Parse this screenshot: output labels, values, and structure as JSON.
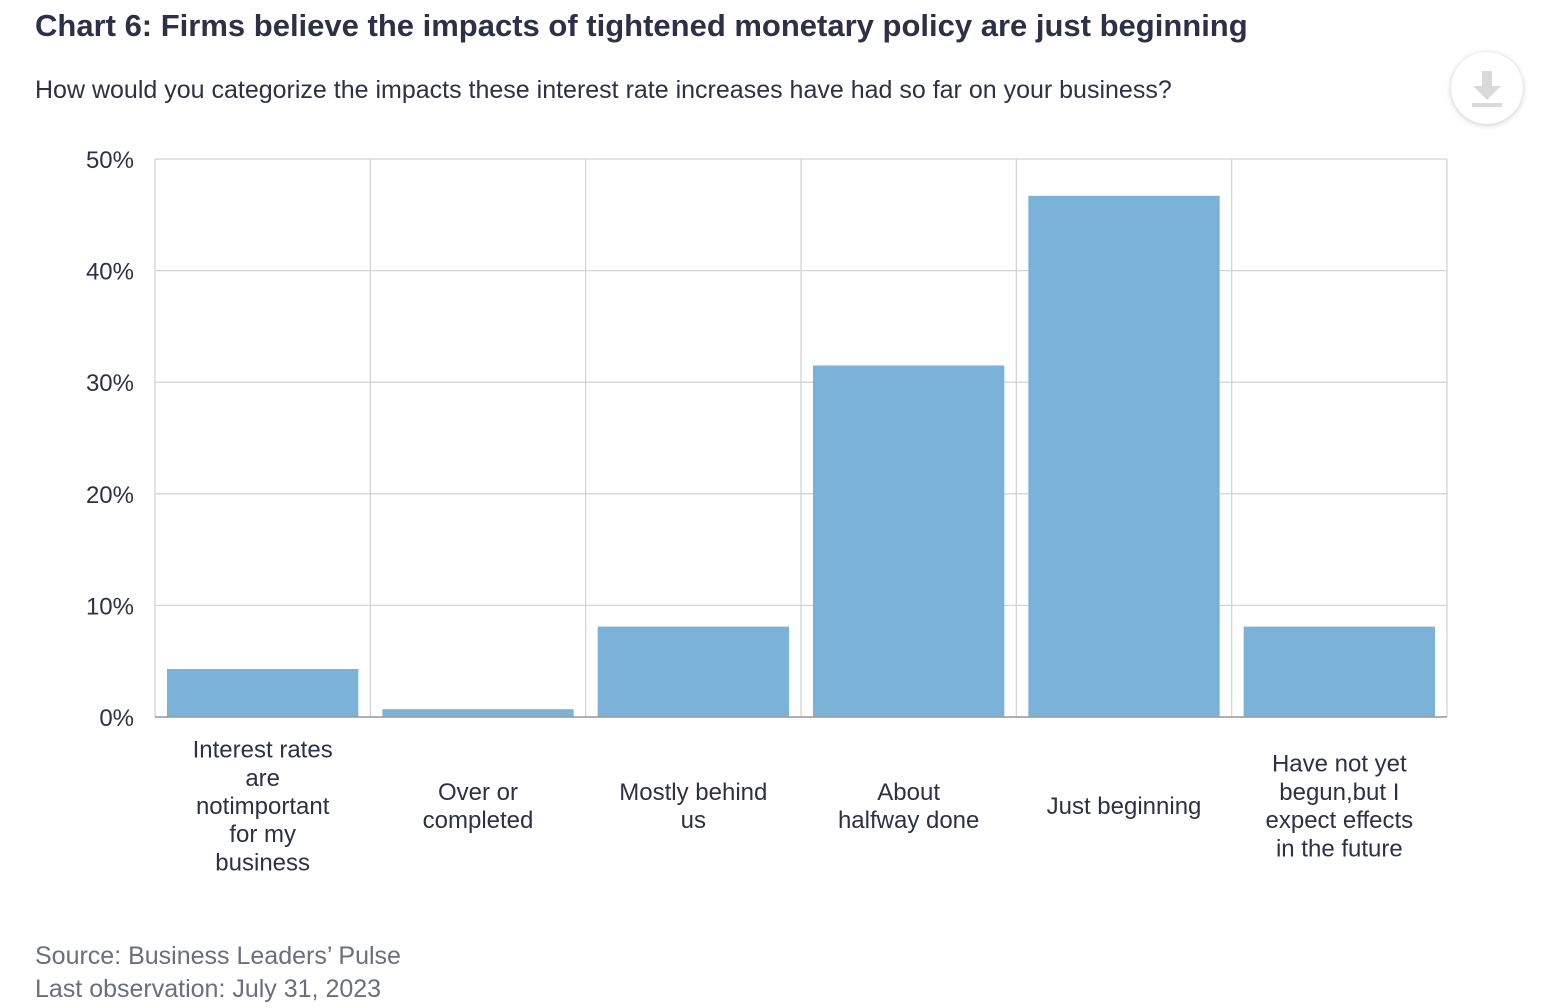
{
  "header": {
    "title": "Chart 6: Firms believe the impacts of tightened monetary policy are just beginning",
    "subtitle": "How would you categorize the impacts these interest rate increases have had so far on your business?"
  },
  "toolbar": {
    "download_icon": "download-icon"
  },
  "footer": {
    "source": "Source: Business Leaders’ Pulse",
    "last_observation": "Last observation: July 31, 2023"
  },
  "colors": {
    "bar": "#7ab3d7",
    "grid": "#d4d4d4",
    "text": "#2e3047",
    "muted": "#6b6d80"
  },
  "chart_data": {
    "type": "bar",
    "title": "Chart 6: Firms believe the impacts of tightened monetary policy are just beginning",
    "subtitle": "How would you categorize the impacts these interest rate increases have had so far on your business?",
    "categories": [
      [
        "Interest rates",
        "are",
        "notimportant",
        "for my",
        "business"
      ],
      [
        "Over or",
        "completed"
      ],
      [
        "Mostly behind",
        "us"
      ],
      [
        "About",
        "halfway done"
      ],
      [
        "Just beginning"
      ],
      [
        "Have not yet",
        "begun,but I",
        "expect effects",
        "in the future"
      ]
    ],
    "values": [
      4.3,
      0.7,
      8.1,
      31.5,
      46.7,
      8.1
    ],
    "unit": "%",
    "ylim": [
      0,
      50
    ],
    "yticks": [
      "0%",
      "10%",
      "20%",
      "30%",
      "40%",
      "50%"
    ],
    "ytick_values": [
      0,
      10,
      20,
      30,
      40,
      50
    ],
    "grid": true,
    "legend": "none"
  }
}
